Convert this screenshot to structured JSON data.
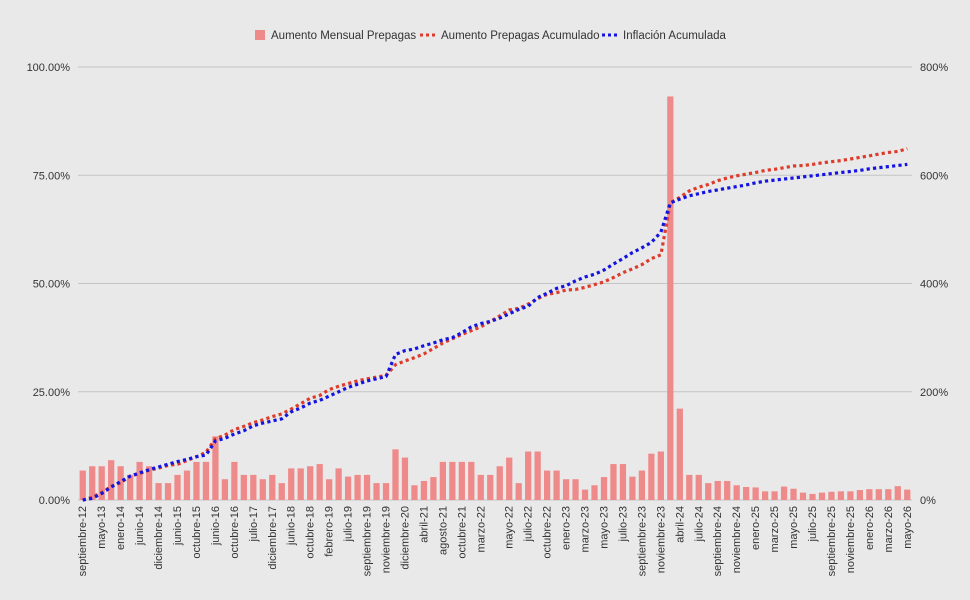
{
  "chart_data": {
    "type": "bar+line",
    "title": "",
    "xlabel": "",
    "ylabel_left": "",
    "ylabel_right": "",
    "legend_position": "top-center",
    "legend": [
      {
        "label": "Aumento Mensual Prepagas",
        "style": "bar"
      },
      {
        "label": "Aumento Prepagas Acumulado",
        "style": "dotted-line"
      },
      {
        "label": "Inflación Acumulada",
        "style": "dotted-line"
      }
    ],
    "colors": {
      "bars": "#ef8a8a",
      "prepagas_acumulado": "#dd3b2b",
      "inflacion_acumulada": "#1414e0",
      "grid": "#c4c4c4",
      "background": "#e9e9e9"
    },
    "grid": true,
    "left_axis": {
      "min": 0,
      "max": 100,
      "ticks": [
        "0.00%",
        "25.00%",
        "50.00%",
        "75.00%",
        "100.00%"
      ]
    },
    "right_axis": {
      "min": 0,
      "max": 800,
      "ticks": [
        "0%",
        "200%",
        "400%",
        "600%",
        "800%"
      ]
    },
    "x_tick_labels": [
      "septiembre-12",
      "mayo-13",
      "enero-14",
      "junio-14",
      "diciembre-14",
      "junio-15",
      "octubre-15",
      "junio-16",
      "octubre-16",
      "julio-17",
      "diciembre-17",
      "junio-18",
      "octubre-18",
      "febrero-19",
      "julio-19",
      "septiembre-19",
      "noviembre-19",
      "diciembre-20",
      "abril-21",
      "agosto-21",
      "octubre-21",
      "marzo-22",
      "mayo-22",
      "julio-22",
      "octubre-22",
      "enero-23",
      "marzo-23",
      "mayo-23",
      "julio-23",
      "septiembre-23",
      "noviembre-23",
      "abril-24",
      "julio-24",
      "septiembre-24",
      "noviembre-24",
      "enero-25",
      "marzo-25",
      "mayo-25",
      "julio-25",
      "septiembre-25",
      "noviembre-25",
      "enero-26",
      "marzo-26",
      "mayo-26"
    ],
    "series": [
      {
        "name": "Aumento Mensual Prepagas",
        "axis": "left",
        "type": "bar",
        "values": [
          6.8,
          7.8,
          7.8,
          9.2,
          7.8,
          5.8,
          8.8,
          7.8,
          3.9,
          3.9,
          5.8,
          6.8,
          8.8,
          8.8,
          14.7,
          4.8,
          8.8,
          5.8,
          5.8,
          4.8,
          5.8,
          3.9,
          7.3,
          7.3,
          7.8,
          8.3,
          4.8,
          7.3,
          5.4,
          5.8,
          5.8,
          3.9,
          3.9,
          11.7,
          9.8,
          3.4,
          4.4,
          5.3,
          8.8,
          8.8,
          8.8,
          8.8,
          5.8,
          5.8,
          7.8,
          9.8,
          3.9,
          11.2,
          11.2,
          6.8,
          6.8,
          4.8,
          4.8,
          2.4,
          3.4,
          5.3,
          8.3,
          8.3,
          5.4,
          6.8,
          10.7,
          11.2,
          93.2,
          21.1,
          5.8,
          5.8,
          3.9,
          4.4,
          4.4,
          3.4,
          3.0,
          2.9,
          2.0,
          2.0,
          3.1,
          2.6,
          1.7,
          1.4,
          1.7,
          1.9,
          2.0,
          2.0,
          2.3,
          2.5,
          2.5,
          2.5,
          3.2,
          2.4
        ]
      },
      {
        "name": "Aumento Prepagas Acumulado",
        "axis": "right",
        "type": "line",
        "values": [
          0,
          5,
          14,
          25,
          32,
          44,
          49,
          55,
          59,
          64,
          66,
          73,
          80,
          88,
          113,
          120,
          130,
          136,
          143,
          148,
          154,
          159,
          168,
          178,
          188,
          193,
          204,
          210,
          215,
          220,
          224,
          227,
          230,
          250,
          257,
          263,
          270,
          280,
          290,
          298,
          306,
          313,
          320,
          330,
          340,
          351,
          354,
          362,
          372,
          380,
          383,
          388,
          389,
          393,
          398,
          403,
          411,
          420,
          427,
          435,
          446,
          453,
          549,
          559,
          571,
          578,
          583,
          590,
          595,
          599,
          602,
          605,
          609,
          611,
          614,
          617,
          618,
          620,
          623,
          625,
          627,
          630,
          633,
          636,
          639,
          642,
          644,
          649
        ]
      },
      {
        "name": "Inflación Acumulada",
        "axis": "right",
        "type": "line",
        "values": [
          0,
          3,
          12,
          24,
          34,
          44,
          50,
          56,
          61,
          66,
          71,
          75,
          80,
          83,
          109,
          114,
          122,
          128,
          137,
          142,
          146,
          150,
          163,
          170,
          179,
          184,
          192,
          200,
          208,
          214,
          220,
          224,
          228,
          269,
          276,
          279,
          285,
          290,
          296,
          300,
          309,
          320,
          326,
          330,
          336,
          344,
          352,
          358,
          374,
          382,
          391,
          396,
          405,
          412,
          417,
          425,
          436,
          446,
          457,
          466,
          476,
          495,
          549,
          556,
          562,
          566,
          570,
          573,
          576,
          579,
          582,
          586,
          589,
          591,
          593,
          595,
          597,
          599,
          601,
          603,
          605,
          607,
          609,
          612,
          614,
          616,
          618,
          620
        ]
      }
    ]
  }
}
